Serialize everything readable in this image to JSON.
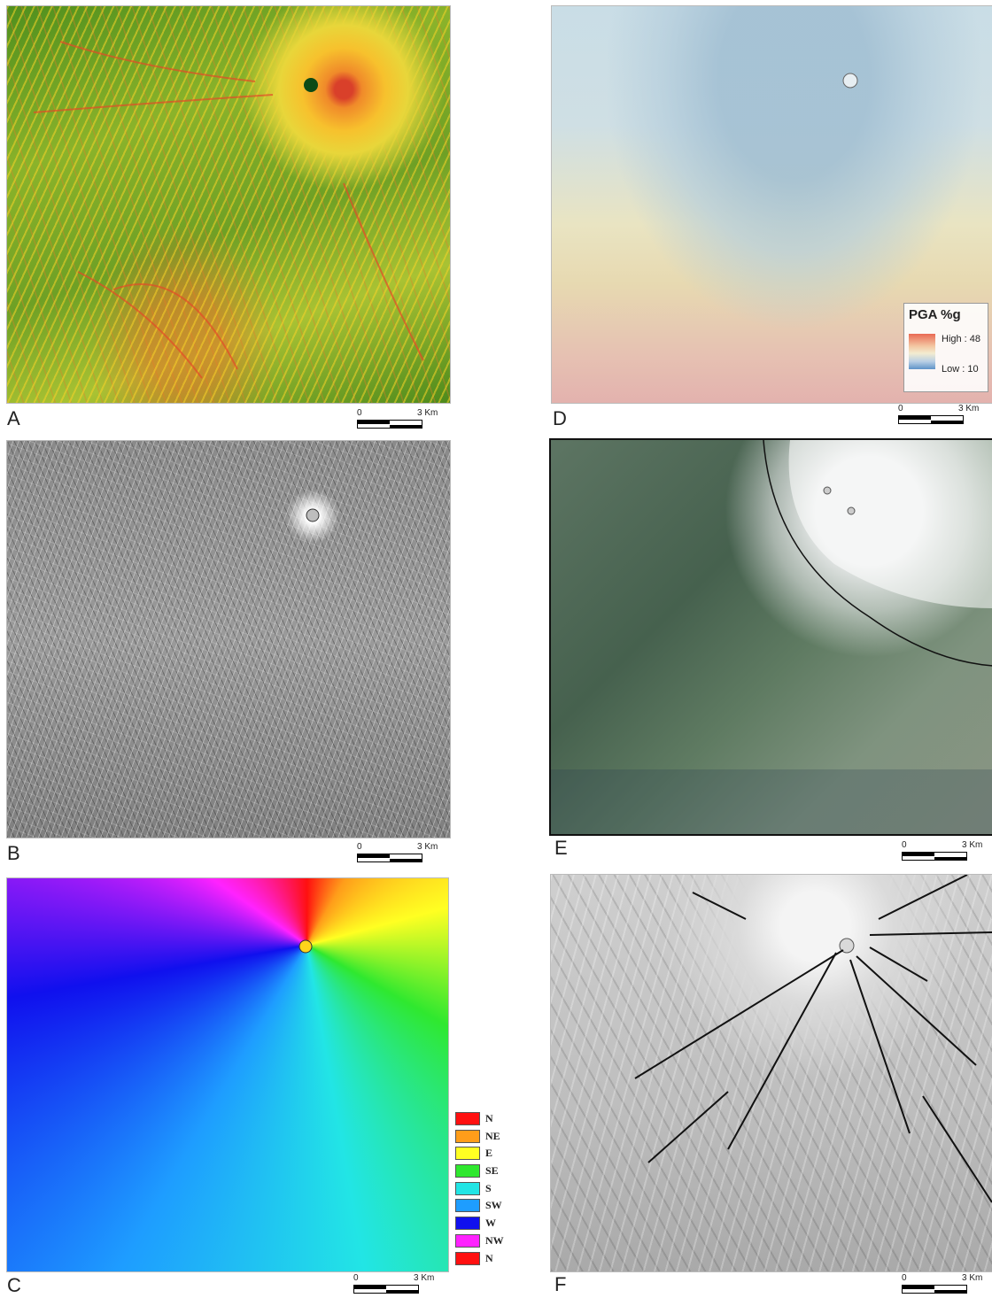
{
  "panels": {
    "a": {
      "letter": "A"
    },
    "b": {
      "letter": "B"
    },
    "c": {
      "letter": "C"
    },
    "d": {
      "letter": "D"
    },
    "e": {
      "letter": "E"
    },
    "f": {
      "letter": "F"
    }
  },
  "scalebar": {
    "zero": "0",
    "label": "3 Km"
  },
  "pga_legend": {
    "title": "PGA %g",
    "high": "High : 48",
    "low": "Low : 10"
  },
  "aspect_legend": [
    {
      "label": "N",
      "color": "#ff1010"
    },
    {
      "label": "NE",
      "color": "#ff9d1a"
    },
    {
      "label": "E",
      "color": "#ffff22"
    },
    {
      "label": "SE",
      "color": "#2fe82f"
    },
    {
      "label": "S",
      "color": "#22e5e5"
    },
    {
      "label": "SW",
      "color": "#1e9dff"
    },
    {
      "label": "W",
      "color": "#1010ee"
    },
    {
      "label": "NW",
      "color": "#ff22ff"
    },
    {
      "label": "N",
      "color": "#ff1010"
    }
  ]
}
